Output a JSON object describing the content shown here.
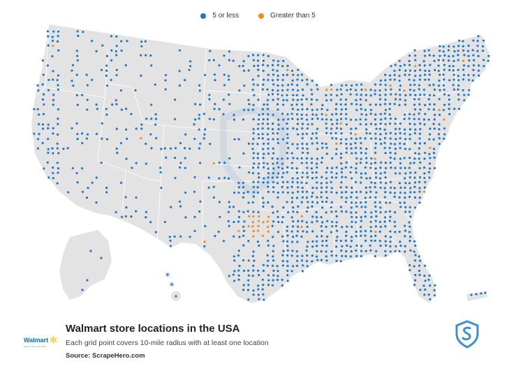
{
  "legend": {
    "items": [
      {
        "label": "5 or less",
        "color": "#1f77c4"
      },
      {
        "label": "Greater than 5",
        "color": "#f28a22"
      }
    ]
  },
  "map": {
    "background_land_color": "#e3e3e3",
    "border_color": "#ffffff",
    "watermark": "ScrapeHero shield watermark",
    "region": "USA"
  },
  "footer": {
    "brand_name": "Walmart",
    "brand_tagline": "Save money. Live better.",
    "title": "Walmart store locations in the USA",
    "subtitle": "Each grid point covers 10-mile radius with at least one location",
    "source": "Source: ScrapeHero.com",
    "logo_icon": "scrapehero-shield-icon"
  },
  "colors": {
    "blue": "#1f77c4",
    "orange": "#f28a22",
    "accent": "#3b8fd6"
  }
}
